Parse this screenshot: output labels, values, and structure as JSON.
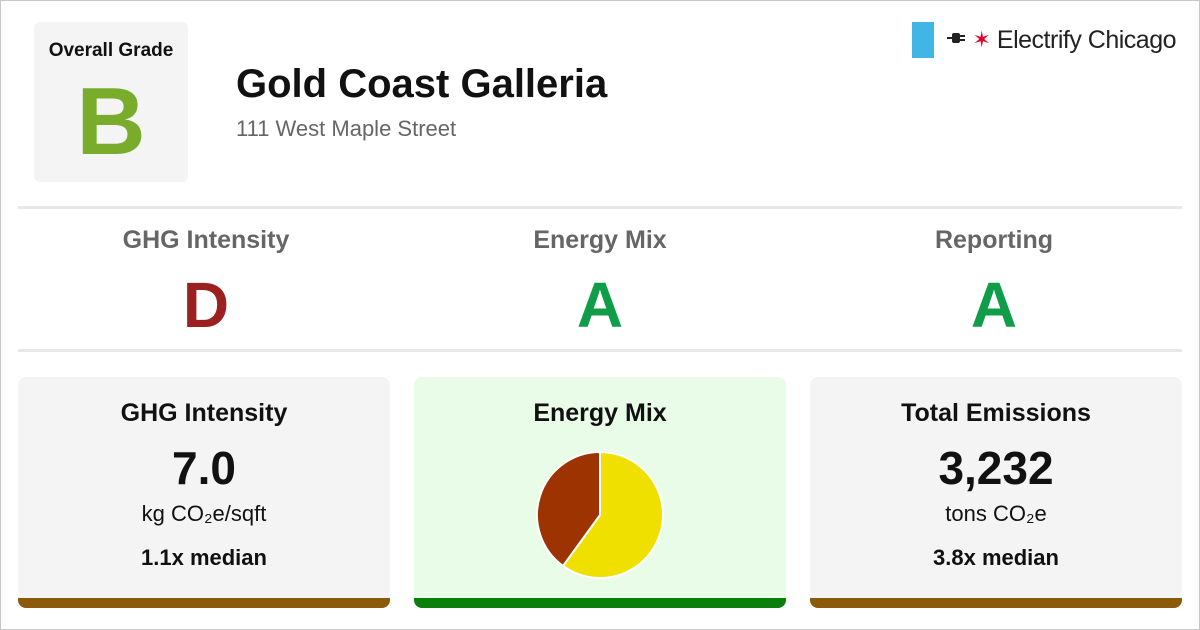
{
  "header": {
    "overall_grade_label": "Overall Grade",
    "overall_grade": "B",
    "overall_grade_color": "#7aac2c",
    "building_name": "Gold Coast Galleria",
    "address": "111 West Maple Street"
  },
  "logo": {
    "text": "Electrify Chicago",
    "plug_icon": "plug-icon",
    "star_icon": "chicago-star-icon",
    "accent_blue": "#41b6e6",
    "accent_red": "#e4002b"
  },
  "subgrades": [
    {
      "label": "GHG Intensity",
      "grade": "D",
      "color": "#9b2020"
    },
    {
      "label": "Energy Mix",
      "grade": "A",
      "color": "#0f9d4a"
    },
    {
      "label": "Reporting",
      "grade": "A",
      "color": "#0f9d4a"
    }
  ],
  "cards": {
    "ghg": {
      "title": "GHG Intensity",
      "value": "7.0",
      "unit": "kg CO₂e/sqft",
      "median": "1.1x median",
      "bar_color": "#8b5a0a"
    },
    "energy": {
      "title": "Energy Mix",
      "bar_color": "#0a7f0a",
      "background": "#e8fce8"
    },
    "emissions": {
      "title": "Total Emissions",
      "value": "3,232",
      "unit": "tons CO₂e",
      "median": "3.8x median",
      "bar_color": "#8b5a0a"
    }
  },
  "chart_data": {
    "type": "pie",
    "slices": [
      {
        "value": 0.6,
        "color": "#f0e000"
      },
      {
        "value": 0.4,
        "color": "#9c3300"
      }
    ]
  }
}
